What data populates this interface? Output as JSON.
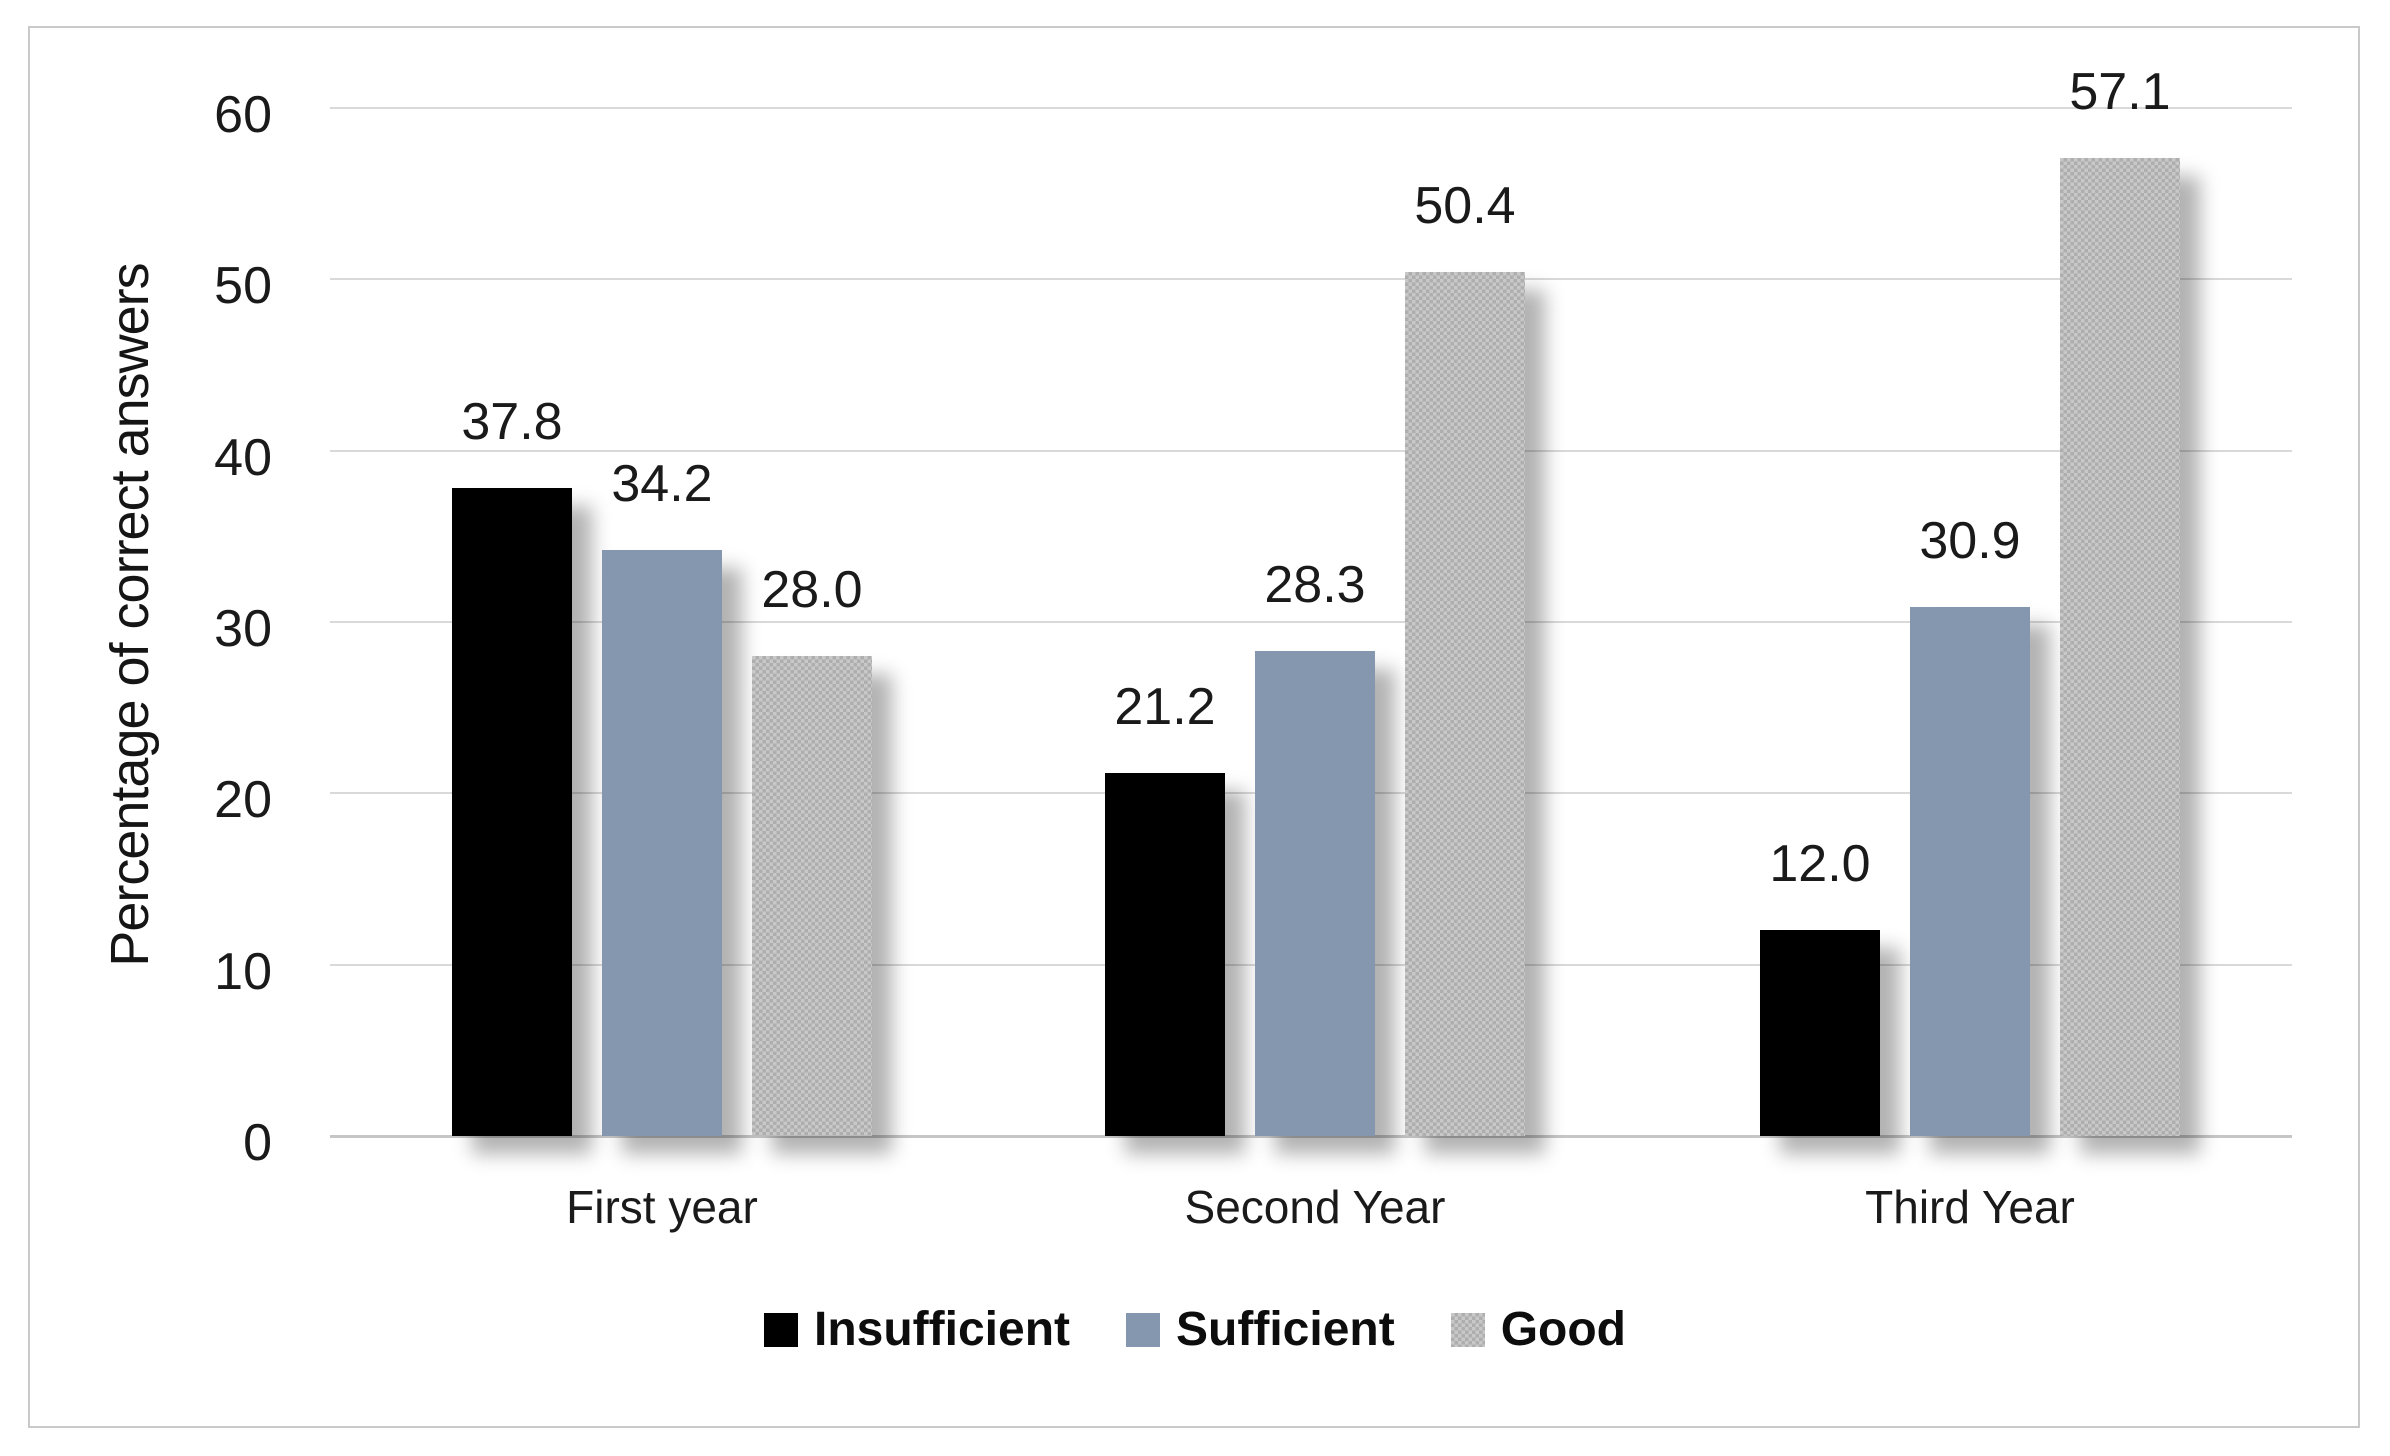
{
  "chart_data": {
    "type": "bar",
    "title": "",
    "xlabel": "",
    "ylabel": "Percentage of correct answers",
    "categories": [
      "First year",
      "Second Year",
      "Third Year"
    ],
    "series": [
      {
        "name": "Insufficient",
        "color": "#000000",
        "pattern": "solid",
        "values": [
          37.8,
          21.2,
          12.0
        ]
      },
      {
        "name": "Sufficient",
        "color": "#8596AF",
        "pattern": "solid",
        "values": [
          34.2,
          28.3,
          30.9
        ]
      },
      {
        "name": "Good",
        "color": "#BDBDBD",
        "pattern": "checker",
        "values": [
          28.0,
          50.4,
          57.1
        ]
      }
    ],
    "ylim": [
      0,
      60
    ],
    "yticks": [
      0,
      10,
      20,
      30,
      40,
      50,
      60
    ],
    "grid": "horizontal",
    "legend_position": "bottom",
    "value_label_format": "one-decimal",
    "grid_color": "#D9D9D9",
    "text_color": "#1A1A1A"
  }
}
